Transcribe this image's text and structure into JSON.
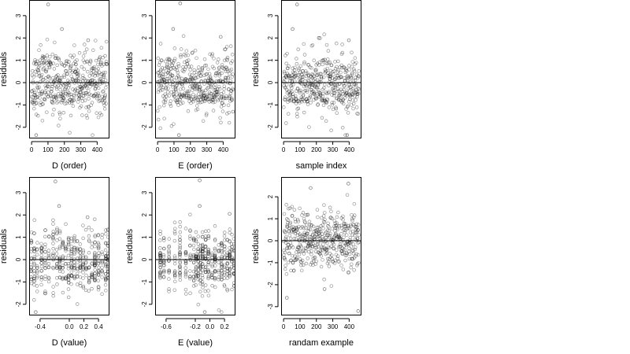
{
  "chart_data": [
    {
      "type": "scatter",
      "panel": "top-left",
      "xlabel": "D (order)",
      "ylabel": "residuals",
      "xlim": [
        -15,
        475
      ],
      "ylim": [
        -2.5,
        3.7
      ],
      "xticks": [
        0,
        100,
        200,
        300,
        400
      ],
      "yticks": [
        -2,
        -1,
        0,
        1,
        2,
        3
      ],
      "reference_line_y": 0,
      "x_mode": "index",
      "n": 460,
      "seed": 11,
      "dark_rows": [
        0.9,
        -0.6,
        -0.8,
        0.05
      ],
      "points": [
        {
          "x": 101,
          "y": 3.5
        },
        {
          "x": 28,
          "y": -2.35
        },
        {
          "x": 185,
          "y": 2.4
        },
        {
          "x": 345,
          "y": 1.9
        },
        {
          "x": 66,
          "y": 1.1
        },
        {
          "x": 420,
          "y": -0.8
        },
        {
          "x": 440,
          "y": -0.9
        },
        {
          "x": 270,
          "y": 0.1
        }
      ]
    },
    {
      "type": "scatter",
      "panel": "top-middle",
      "xlabel": "E (order)",
      "ylabel": "residuals",
      "xlim": [
        -15,
        475
      ],
      "ylim": [
        -2.5,
        3.7
      ],
      "xticks": [
        0,
        100,
        200,
        300,
        400
      ],
      "yticks": [
        -2,
        -1,
        0,
        1,
        2,
        3
      ],
      "reference_line_y": 0,
      "x_mode": "index",
      "n": 460,
      "seed": 23,
      "dark_rows": [
        0.05,
        -0.55,
        -0.75
      ],
      "points": [
        {
          "x": 138,
          "y": 3.55
        },
        {
          "x": 95,
          "y": 2.4
        },
        {
          "x": 130,
          "y": -2.35
        },
        {
          "x": 385,
          "y": 2.05
        },
        {
          "x": 330,
          "y": -0.75
        },
        {
          "x": 460,
          "y": -1.3
        }
      ]
    },
    {
      "type": "scatter",
      "panel": "top-right",
      "xlabel": "sample index",
      "ylabel": "residuals",
      "xlim": [
        -15,
        475
      ],
      "ylim": [
        -2.5,
        3.7
      ],
      "xticks": [
        0,
        100,
        200,
        300,
        400
      ],
      "yticks": [
        -2,
        -1,
        0,
        1,
        2,
        3
      ],
      "reference_line_y": 0,
      "x_mode": "index",
      "n": 460,
      "seed": 37,
      "dark_rows": [
        0.3,
        -0.5,
        -0.8
      ],
      "points": [
        {
          "x": 82,
          "y": 3.5
        },
        {
          "x": 55,
          "y": 2.4
        },
        {
          "x": 388,
          "y": -2.35
        },
        {
          "x": 215,
          "y": 2.0
        },
        {
          "x": 398,
          "y": 1.9
        }
      ]
    },
    {
      "type": "scatter",
      "panel": "bottom-left",
      "xlabel": "D (value)",
      "ylabel": "residuals",
      "xlim": [
        -0.55,
        0.55
      ],
      "ylim": [
        -2.5,
        3.7
      ],
      "xticks": [
        -0.4,
        0.0,
        0.2,
        0.4
      ],
      "xticklabels": [
        "-0.4",
        "0.0",
        "0.2",
        "0.4"
      ],
      "yticks": [
        -2,
        -1,
        0,
        1,
        2,
        3
      ],
      "reference_line_y": 0,
      "x_mode": "columns",
      "columns": [
        -0.52,
        -0.48,
        -0.44,
        -0.38,
        -0.33,
        -0.28,
        -0.22,
        -0.17,
        -0.13,
        -0.09,
        -0.05,
        -0.01,
        0.03,
        0.07,
        0.11,
        0.15,
        0.19,
        0.23,
        0.27,
        0.31,
        0.35,
        0.4,
        0.45,
        0.5,
        0.53
      ],
      "n": 460,
      "seed": 51,
      "dark_rows": [
        0.05,
        -0.35,
        -0.8
      ],
      "points": [
        {
          "x": -0.19,
          "y": 3.5
        },
        {
          "x": -0.46,
          "y": -2.35
        },
        {
          "x": -0.14,
          "y": 2.4
        },
        {
          "x": 0.25,
          "y": 1.9
        },
        {
          "x": 0.11,
          "y": 0.05
        }
      ]
    },
    {
      "type": "scatter",
      "panel": "bottom-middle",
      "xlabel": "E (value)",
      "ylabel": "residuals",
      "xlim": [
        -0.75,
        0.35
      ],
      "ylim": [
        -2.5,
        3.7
      ],
      "xticks": [
        -0.6,
        -0.2,
        0.0,
        0.2
      ],
      "xticklabels": [
        "-0.6",
        "-0.2",
        "0.0",
        "0.2"
      ],
      "yticks": [
        -2,
        -1,
        0,
        1,
        2,
        3
      ],
      "reference_line_y": 0,
      "x_mode": "columns",
      "columns": [
        -0.68,
        -0.63,
        -0.56,
        -0.48,
        -0.41,
        -0.33,
        -0.27,
        -0.22,
        -0.19,
        -0.16,
        -0.13,
        -0.1,
        -0.06,
        -0.02,
        0.03,
        0.07,
        0.12,
        0.16,
        0.2,
        0.24,
        0.27,
        0.3,
        0.33
      ],
      "n": 460,
      "seed": 67,
      "dark_rows": [
        0.05,
        -0.55,
        -0.75
      ],
      "points": [
        {
          "x": -0.14,
          "y": 3.55
        },
        {
          "x": -0.14,
          "y": 2.4
        },
        {
          "x": -0.07,
          "y": -2.35
        },
        {
          "x": 0.27,
          "y": 2.05
        },
        {
          "x": 0.27,
          "y": -0.75
        }
      ]
    },
    {
      "type": "scatter",
      "panel": "bottom-right",
      "xlabel": "randam example",
      "ylabel": "residuals",
      "xlim": [
        -15,
        475
      ],
      "ylim": [
        -3.4,
        2.9
      ],
      "xticks": [
        0,
        100,
        200,
        300,
        400
      ],
      "yticks": [
        -3,
        -2,
        -1,
        0,
        1,
        2
      ],
      "reference_line_y": 0,
      "x_mode": "index",
      "n": 460,
      "seed": 83,
      "dark_rows": [],
      "points": [
        {
          "x": 395,
          "y": 2.6
        },
        {
          "x": 20,
          "y": -2.6
        },
        {
          "x": 455,
          "y": -3.2
        },
        {
          "x": 165,
          "y": 2.4
        },
        {
          "x": 250,
          "y": -2.2
        }
      ]
    }
  ]
}
